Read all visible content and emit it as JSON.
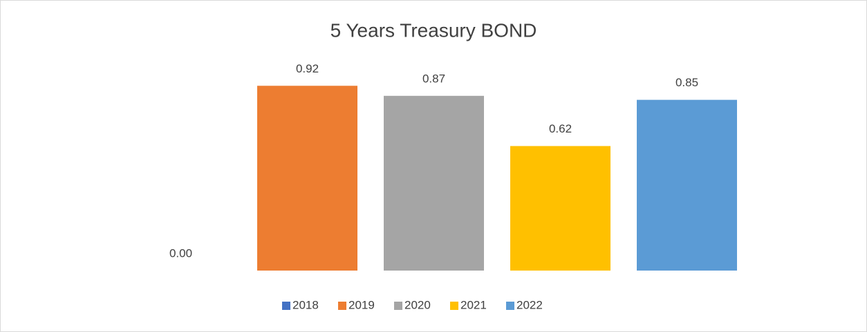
{
  "chart_data": {
    "type": "bar",
    "title": "5 Years Treasury BOND",
    "series": [
      {
        "name": "2018",
        "color": "#4472c4",
        "values": [
          0
        ],
        "value_labels": [
          "0.00"
        ]
      },
      {
        "name": "2019",
        "color": "#ed7d31",
        "values": [
          0.92
        ],
        "value_labels": [
          "0.92"
        ]
      },
      {
        "name": "2020",
        "color": "#a5a5a5",
        "values": [
          0.87
        ],
        "value_labels": [
          "0.87"
        ]
      },
      {
        "name": "2021",
        "color": "#ffc000",
        "values": [
          0.62
        ],
        "value_labels": [
          "0.62"
        ]
      },
      {
        "name": "2022",
        "color": "#5b9bd5",
        "values": [
          0.85
        ],
        "value_labels": [
          "0.85"
        ]
      }
    ],
    "ylim": [
      0,
      1
    ],
    "grid": false,
    "legend": "bottom"
  }
}
